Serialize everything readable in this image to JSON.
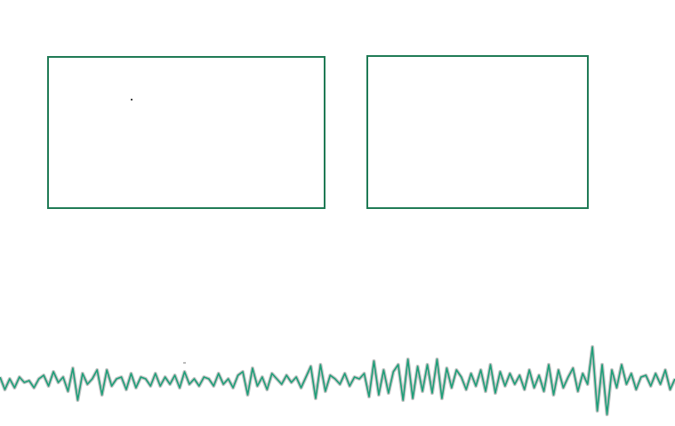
{
  "colors": {
    "panel_border": "#1f7a55",
    "wave_stroke": "#1d9e78",
    "wave_shadow": "#555555",
    "background": "#ffffff"
  },
  "panels": [
    {
      "name": "left-panel",
      "content": ""
    },
    {
      "name": "right-panel",
      "content": ""
    }
  ],
  "waveform": {
    "style": "noisy-oscillation",
    "baseline": 0.0,
    "amplitude_range": [
      -1,
      1
    ],
    "samples": [
      0.1,
      -0.25,
      0.05,
      -0.2,
      0.1,
      -0.05,
      0.0,
      -0.2,
      0.05,
      0.15,
      -0.15,
      0.25,
      -0.05,
      0.1,
      -0.3,
      0.35,
      -0.55,
      0.2,
      -0.1,
      0.05,
      0.3,
      -0.4,
      0.3,
      -0.15,
      0.05,
      0.1,
      -0.25,
      0.2,
      -0.2,
      0.1,
      0.05,
      -0.15,
      0.2,
      -0.15,
      0.1,
      -0.1,
      0.15,
      -0.2,
      0.25,
      -0.1,
      0.05,
      -0.15,
      0.1,
      0.05,
      -0.15,
      0.2,
      -0.1,
      0.05,
      -0.2,
      0.15,
      0.25,
      -0.4,
      0.35,
      -0.15,
      0.1,
      -0.25,
      0.2,
      0.05,
      -0.1,
      0.15,
      -0.05,
      0.1,
      -0.2,
      0.1,
      0.4,
      -0.5,
      0.45,
      -0.3,
      0.15,
      0.05,
      -0.1,
      0.2,
      -0.15,
      0.1,
      0.05,
      0.2,
      -0.45,
      0.55,
      -0.4,
      0.3,
      -0.35,
      0.25,
      0.45,
      -0.55,
      0.6,
      -0.5,
      0.4,
      -0.3,
      0.45,
      -0.35,
      0.6,
      -0.5,
      0.35,
      -0.2,
      0.3,
      0.1,
      -0.25,
      0.2,
      -0.15,
      0.3,
      -0.3,
      0.45,
      -0.35,
      0.25,
      -0.15,
      0.2,
      -0.1,
      0.15,
      -0.25,
      0.3,
      -0.2,
      0.15,
      -0.3,
      0.45,
      -0.4,
      0.3,
      -0.2,
      0.1,
      0.35,
      -0.3,
      0.2,
      -0.1,
      0.95,
      -0.85,
      0.45,
      -0.95,
      0.3,
      -0.2,
      0.45,
      -0.1,
      0.2,
      -0.25,
      0.1,
      0.15,
      -0.15,
      0.2,
      -0.1,
      0.3,
      -0.25,
      0.05
    ]
  }
}
